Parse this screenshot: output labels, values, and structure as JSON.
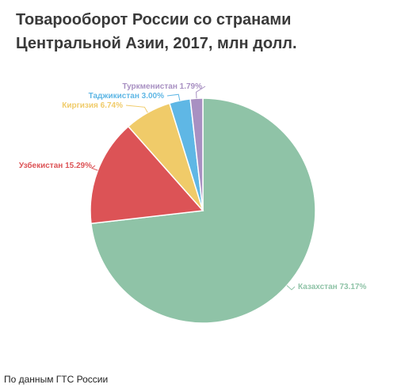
{
  "title": "Товарооборот России со странами Центральной Азии, 2017, млн долл.",
  "source": "По данным ГТС России",
  "chart_data": {
    "type": "pie",
    "title": "Товарооборот России со странами Центральной Азии, 2017, млн долл.",
    "slices": [
      {
        "name": "Казахстан",
        "value": 73.17,
        "label": "Казахстан 73.17%",
        "color": "#8fc3a7"
      },
      {
        "name": "Узбекистан",
        "value": 15.29,
        "label": "Узбекистан 15.29%",
        "color": "#dc5356"
      },
      {
        "name": "Киргизия",
        "value": 6.74,
        "label": "Киргизия 6.74%",
        "color": "#f0cb69"
      },
      {
        "name": "Таджикистан",
        "value": 3.0,
        "label": "Таджикистан 3.00%",
        "color": "#5fb7e5"
      },
      {
        "name": "Туркменистан",
        "value": 1.79,
        "label": "Туркменистан 1.79%",
        "color": "#a890c2"
      }
    ],
    "start": "12 o'clock",
    "direction": "clockwise",
    "legend": "none"
  }
}
